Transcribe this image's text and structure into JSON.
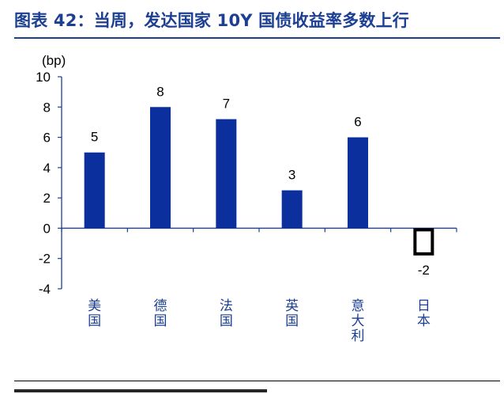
{
  "figure": {
    "title": "图表 42：当周，发达国家 10Y 国债收益率多数上行"
  },
  "chart_data": {
    "type": "bar",
    "title": "图表 42：当周，发达国家 10Y 国债收益率多数上行",
    "xlabel": "",
    "ylabel": "(bp)",
    "ylim": [
      -4,
      10
    ],
    "yticks": [
      "10",
      "8",
      "6",
      "4",
      "2",
      "0",
      "-2",
      "-4"
    ],
    "categories": [
      "美国",
      "德国",
      "法国",
      "英国",
      "意大利",
      "日本"
    ],
    "values": [
      5,
      8,
      7.2,
      2.5,
      6,
      -1.8
    ],
    "data_labels": [
      "5",
      "8",
      "7",
      "3",
      "6",
      "-2"
    ],
    "grid": false,
    "legend": "none",
    "colors": {
      "bar": "#0b2f9c",
      "axis": "#1c3f94",
      "title": "#1c3f94"
    }
  }
}
